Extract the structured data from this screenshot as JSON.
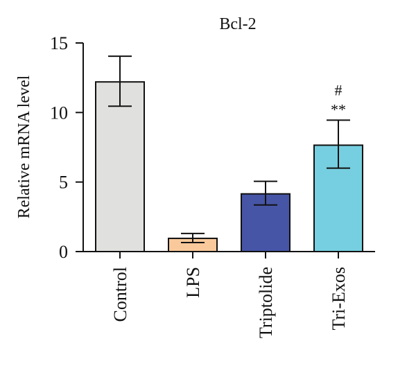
{
  "chart_data": {
    "type": "bar",
    "title": "Bcl-2",
    "xlabel": "",
    "ylabel": "Relative mRNA level",
    "ylim": [
      0,
      15
    ],
    "yticks": [
      0,
      5,
      10,
      15
    ],
    "categories": [
      "Control",
      "LPS",
      "Triptolide",
      "Tri-Exos"
    ],
    "values": [
      12.2,
      0.95,
      4.15,
      7.65
    ],
    "error_low": [
      10.45,
      0.65,
      3.35,
      6.0
    ],
    "error_high": [
      14.05,
      1.3,
      5.05,
      9.45
    ],
    "colors": [
      "#e0e0df",
      "#f9c99b",
      "#4655a5",
      "#76cfe0"
    ],
    "annotations": [
      {
        "category": "Tri-Exos",
        "lines": [
          "#",
          "**"
        ]
      }
    ],
    "grid": false,
    "legend": "none"
  }
}
